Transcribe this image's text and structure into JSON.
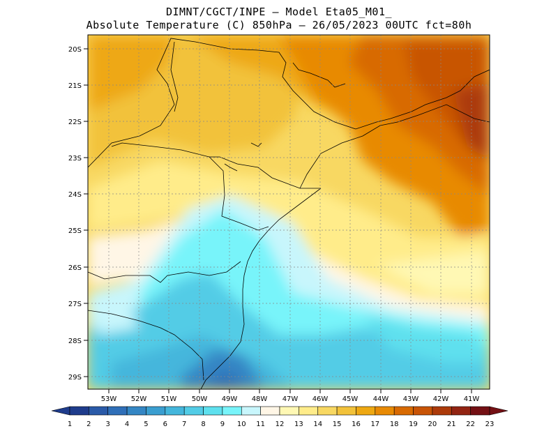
{
  "title_line1": "DIMNT/CGCT/INPE –  Model Eta05_M01_",
  "title_line2": "Absolute Temperature (C) 850hPa –  26/05/2023 00UTC fct=80h",
  "map": {
    "lat_labels": [
      "20S",
      "21S",
      "22S",
      "23S",
      "24S",
      "25S",
      "26S",
      "27S",
      "28S",
      "29S"
    ],
    "lon_labels": [
      "53W",
      "52W",
      "51W",
      "50W",
      "49W",
      "48W",
      "47W",
      "46W",
      "45W",
      "44W",
      "43W",
      "42W",
      "41W"
    ],
    "gridlines": true
  },
  "colorbar": {
    "labels": [
      "1",
      "2",
      "3",
      "4",
      "5",
      "6",
      "7",
      "8",
      "9",
      "10",
      "11",
      "12",
      "13",
      "14",
      "15",
      "16",
      "17",
      "18",
      "19",
      "20",
      "21",
      "22",
      "23"
    ],
    "colors": [
      "#1e3c8c",
      "#2a5aa8",
      "#2f6fb8",
      "#3486c4",
      "#3a9ed0",
      "#44b6dc",
      "#52cce6",
      "#5ee0ee",
      "#78f4fa",
      "#c8f6fc",
      "#fff6e6",
      "#fff8b4",
      "#ffec8a",
      "#f8d862",
      "#f2c23a",
      "#eea812",
      "#e88a04",
      "#d86a02",
      "#c85406",
      "#ac3a0a",
      "#922412",
      "#741014"
    ]
  }
}
